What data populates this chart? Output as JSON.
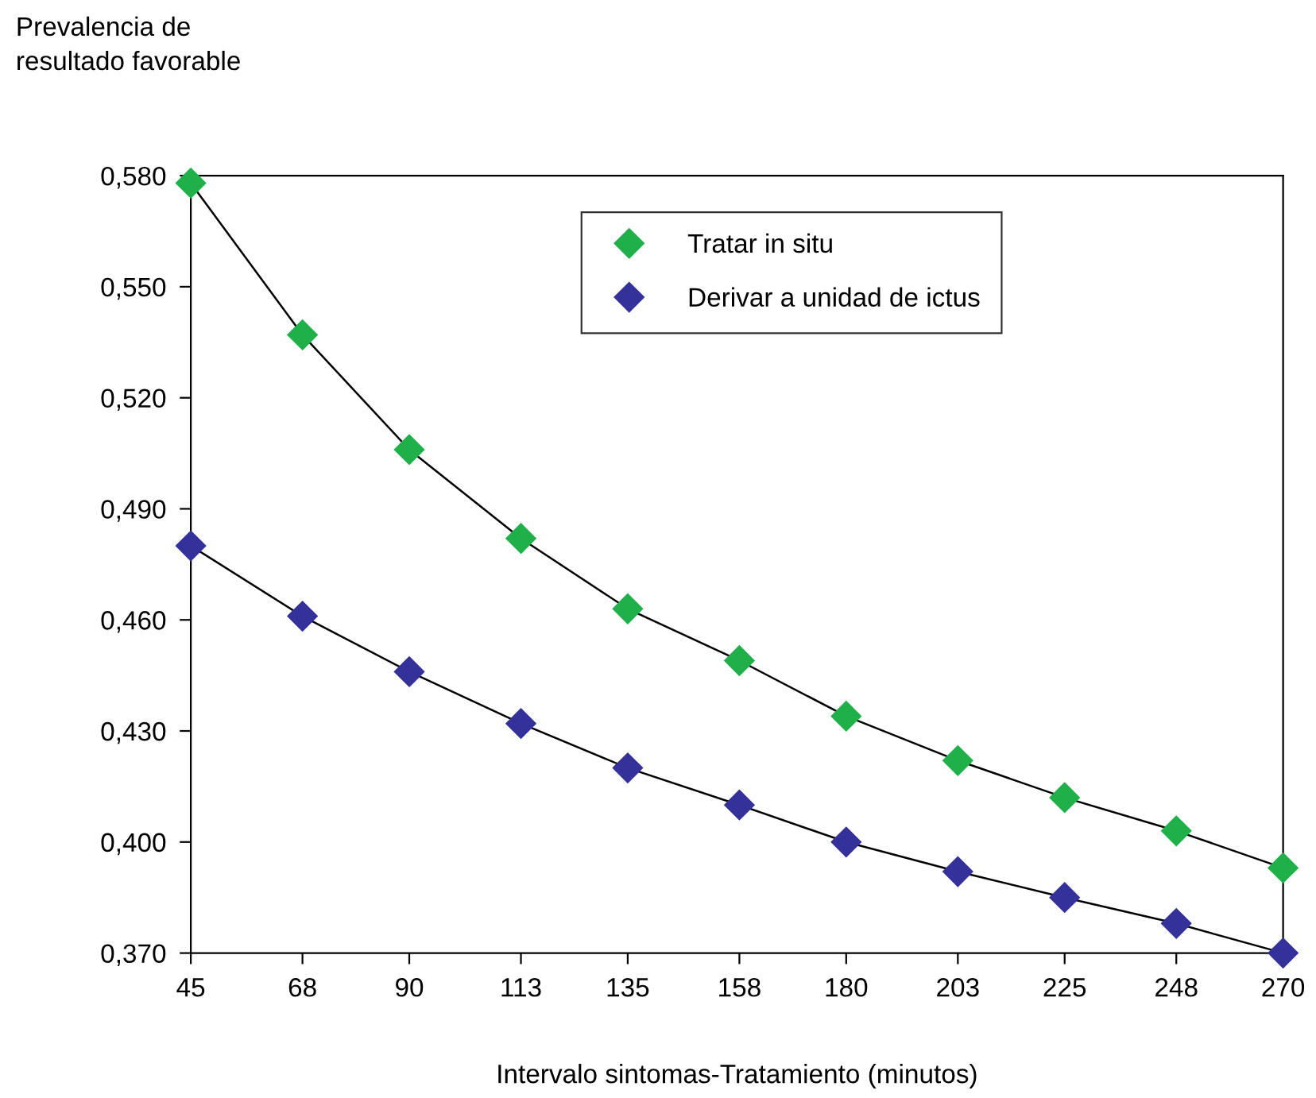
{
  "chart_data": {
    "type": "line",
    "ylabel": "Prevalencia de\nresultado favorable",
    "xlabel": "Intervalo sintomas-Tratamiento (minutos)",
    "x": [
      45,
      68,
      90,
      113,
      135,
      158,
      180,
      203,
      225,
      248,
      270
    ],
    "series": [
      {
        "name": "Tratar in situ",
        "color": "#1fb04a",
        "values": [
          0.578,
          0.537,
          0.506,
          0.482,
          0.463,
          0.449,
          0.434,
          0.422,
          0.412,
          0.403,
          0.393
        ]
      },
      {
        "name": "Derivar a unidad de ictus",
        "color": "#35319a",
        "values": [
          0.48,
          0.461,
          0.446,
          0.432,
          0.42,
          0.41,
          0.4,
          0.392,
          0.385,
          0.378,
          0.37
        ]
      }
    ],
    "xlim": [
      45,
      270
    ],
    "xticks": [
      45,
      68,
      90,
      113,
      135,
      158,
      180,
      203,
      225,
      248,
      270
    ],
    "ylim": [
      0.37,
      0.58
    ],
    "yticks": [
      {
        "value": 0.37,
        "label": "0,370"
      },
      {
        "value": 0.4,
        "label": "0,400"
      },
      {
        "value": 0.43,
        "label": "0,430"
      },
      {
        "value": 0.46,
        "label": "0,460"
      },
      {
        "value": 0.49,
        "label": "0,490"
      },
      {
        "value": 0.52,
        "label": "0,520"
      },
      {
        "value": 0.55,
        "label": "0,550"
      },
      {
        "value": 0.58,
        "label": "0,580"
      }
    ],
    "marker": "diamond",
    "line_style": "solid",
    "grid": false,
    "legend": "top"
  }
}
